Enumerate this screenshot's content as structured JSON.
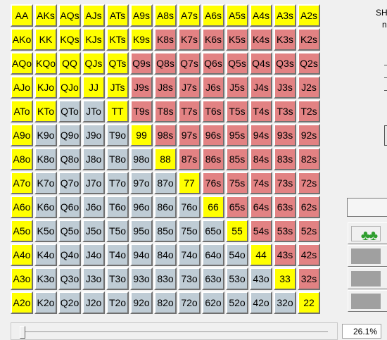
{
  "colors": {
    "raise": "#ffff00",
    "suited_fold": "#e28283",
    "offsuit_fold": "#bfccd5",
    "clubs_icon": "#2e9e2e"
  },
  "side_panel": {
    "label_line1": "SH",
    "label_line2": "n",
    "suit_icon": "clubs-icon",
    "suit_glyph": "♣♣"
  },
  "slider": {
    "value_text": "26.1%",
    "value_fraction": 0.261
  },
  "grid": {
    "rows": [
      [
        [
          "AA",
          "raise"
        ],
        [
          "AKs",
          "raise"
        ],
        [
          "AQs",
          "raise"
        ],
        [
          "AJs",
          "raise"
        ],
        [
          "ATs",
          "raise"
        ],
        [
          "A9s",
          "raise"
        ],
        [
          "A8s",
          "raise"
        ],
        [
          "A7s",
          "raise"
        ],
        [
          "A6s",
          "raise"
        ],
        [
          "A5s",
          "raise"
        ],
        [
          "A4s",
          "raise"
        ],
        [
          "A3s",
          "raise"
        ],
        [
          "A2s",
          "raise"
        ]
      ],
      [
        [
          "AKo",
          "raise"
        ],
        [
          "KK",
          "raise"
        ],
        [
          "KQs",
          "raise"
        ],
        [
          "KJs",
          "raise"
        ],
        [
          "KTs",
          "raise"
        ],
        [
          "K9s",
          "raise"
        ],
        [
          "K8s",
          "suited"
        ],
        [
          "K7s",
          "suited"
        ],
        [
          "K6s",
          "suited"
        ],
        [
          "K5s",
          "suited"
        ],
        [
          "K4s",
          "suited"
        ],
        [
          "K3s",
          "suited"
        ],
        [
          "K2s",
          "suited"
        ]
      ],
      [
        [
          "AQo",
          "raise"
        ],
        [
          "KQo",
          "raise"
        ],
        [
          "QQ",
          "raise"
        ],
        [
          "QJs",
          "raise"
        ],
        [
          "QTs",
          "raise"
        ],
        [
          "Q9s",
          "suited"
        ],
        [
          "Q8s",
          "suited"
        ],
        [
          "Q7s",
          "suited"
        ],
        [
          "Q6s",
          "suited"
        ],
        [
          "Q5s",
          "suited"
        ],
        [
          "Q4s",
          "suited"
        ],
        [
          "Q3s",
          "suited"
        ],
        [
          "Q2s",
          "suited"
        ]
      ],
      [
        [
          "AJo",
          "raise"
        ],
        [
          "KJo",
          "raise"
        ],
        [
          "QJo",
          "raise"
        ],
        [
          "JJ",
          "raise"
        ],
        [
          "JTs",
          "raise"
        ],
        [
          "J9s",
          "suited"
        ],
        [
          "J8s",
          "suited"
        ],
        [
          "J7s",
          "suited"
        ],
        [
          "J6s",
          "suited"
        ],
        [
          "J5s",
          "suited"
        ],
        [
          "J4s",
          "suited"
        ],
        [
          "J3s",
          "suited"
        ],
        [
          "J2s",
          "suited"
        ]
      ],
      [
        [
          "ATo",
          "raise"
        ],
        [
          "KTo",
          "raise"
        ],
        [
          "QTo",
          "offsuit"
        ],
        [
          "JTo",
          "offsuit"
        ],
        [
          "TT",
          "raise"
        ],
        [
          "T9s",
          "suited"
        ],
        [
          "T8s",
          "suited"
        ],
        [
          "T7s",
          "suited"
        ],
        [
          "T6s",
          "suited"
        ],
        [
          "T5s",
          "suited"
        ],
        [
          "T4s",
          "suited"
        ],
        [
          "T3s",
          "suited"
        ],
        [
          "T2s",
          "suited"
        ]
      ],
      [
        [
          "A9o",
          "raise"
        ],
        [
          "K9o",
          "offsuit"
        ],
        [
          "Q9o",
          "offsuit"
        ],
        [
          "J9o",
          "offsuit"
        ],
        [
          "T9o",
          "offsuit"
        ],
        [
          "99",
          "raise"
        ],
        [
          "98s",
          "suited"
        ],
        [
          "97s",
          "suited"
        ],
        [
          "96s",
          "suited"
        ],
        [
          "95s",
          "suited"
        ],
        [
          "94s",
          "suited"
        ],
        [
          "93s",
          "suited"
        ],
        [
          "92s",
          "suited"
        ]
      ],
      [
        [
          "A8o",
          "raise"
        ],
        [
          "K8o",
          "offsuit"
        ],
        [
          "Q8o",
          "offsuit"
        ],
        [
          "J8o",
          "offsuit"
        ],
        [
          "T8o",
          "offsuit"
        ],
        [
          "98o",
          "offsuit"
        ],
        [
          "88",
          "raise"
        ],
        [
          "87s",
          "suited"
        ],
        [
          "86s",
          "suited"
        ],
        [
          "85s",
          "suited"
        ],
        [
          "84s",
          "suited"
        ],
        [
          "83s",
          "suited"
        ],
        [
          "82s",
          "suited"
        ]
      ],
      [
        [
          "A7o",
          "raise"
        ],
        [
          "K7o",
          "offsuit"
        ],
        [
          "Q7o",
          "offsuit"
        ],
        [
          "J7o",
          "offsuit"
        ],
        [
          "T7o",
          "offsuit"
        ],
        [
          "97o",
          "offsuit"
        ],
        [
          "87o",
          "offsuit"
        ],
        [
          "77",
          "raise"
        ],
        [
          "76s",
          "suited"
        ],
        [
          "75s",
          "suited"
        ],
        [
          "74s",
          "suited"
        ],
        [
          "73s",
          "suited"
        ],
        [
          "72s",
          "suited"
        ]
      ],
      [
        [
          "A6o",
          "raise"
        ],
        [
          "K6o",
          "offsuit"
        ],
        [
          "Q6o",
          "offsuit"
        ],
        [
          "J6o",
          "offsuit"
        ],
        [
          "T6o",
          "offsuit"
        ],
        [
          "96o",
          "offsuit"
        ],
        [
          "86o",
          "offsuit"
        ],
        [
          "76o",
          "offsuit"
        ],
        [
          "66",
          "raise"
        ],
        [
          "65s",
          "suited"
        ],
        [
          "64s",
          "suited"
        ],
        [
          "63s",
          "suited"
        ],
        [
          "62s",
          "suited"
        ]
      ],
      [
        [
          "A5o",
          "raise"
        ],
        [
          "K5o",
          "offsuit"
        ],
        [
          "Q5o",
          "offsuit"
        ],
        [
          "J5o",
          "offsuit"
        ],
        [
          "T5o",
          "offsuit"
        ],
        [
          "95o",
          "offsuit"
        ],
        [
          "85o",
          "offsuit"
        ],
        [
          "75o",
          "offsuit"
        ],
        [
          "65o",
          "offsuit"
        ],
        [
          "55",
          "raise"
        ],
        [
          "54s",
          "suited"
        ],
        [
          "53s",
          "suited"
        ],
        [
          "52s",
          "suited"
        ]
      ],
      [
        [
          "A4o",
          "raise"
        ],
        [
          "K4o",
          "offsuit"
        ],
        [
          "Q4o",
          "offsuit"
        ],
        [
          "J4o",
          "offsuit"
        ],
        [
          "T4o",
          "offsuit"
        ],
        [
          "94o",
          "offsuit"
        ],
        [
          "84o",
          "offsuit"
        ],
        [
          "74o",
          "offsuit"
        ],
        [
          "64o",
          "offsuit"
        ],
        [
          "54o",
          "offsuit"
        ],
        [
          "44",
          "raise"
        ],
        [
          "43s",
          "suited"
        ],
        [
          "42s",
          "suited"
        ]
      ],
      [
        [
          "A3o",
          "raise"
        ],
        [
          "K3o",
          "offsuit"
        ],
        [
          "Q3o",
          "offsuit"
        ],
        [
          "J3o",
          "offsuit"
        ],
        [
          "T3o",
          "offsuit"
        ],
        [
          "93o",
          "offsuit"
        ],
        [
          "83o",
          "offsuit"
        ],
        [
          "73o",
          "offsuit"
        ],
        [
          "63o",
          "offsuit"
        ],
        [
          "53o",
          "offsuit"
        ],
        [
          "43o",
          "offsuit"
        ],
        [
          "33",
          "raise"
        ],
        [
          "32s",
          "suited"
        ]
      ],
      [
        [
          "A2o",
          "raise"
        ],
        [
          "K2o",
          "offsuit"
        ],
        [
          "Q2o",
          "offsuit"
        ],
        [
          "J2o",
          "offsuit"
        ],
        [
          "T2o",
          "offsuit"
        ],
        [
          "92o",
          "offsuit"
        ],
        [
          "82o",
          "offsuit"
        ],
        [
          "72o",
          "offsuit"
        ],
        [
          "62o",
          "offsuit"
        ],
        [
          "52o",
          "offsuit"
        ],
        [
          "42o",
          "offsuit"
        ],
        [
          "32o",
          "offsuit"
        ],
        [
          "22",
          "raise"
        ]
      ]
    ]
  }
}
